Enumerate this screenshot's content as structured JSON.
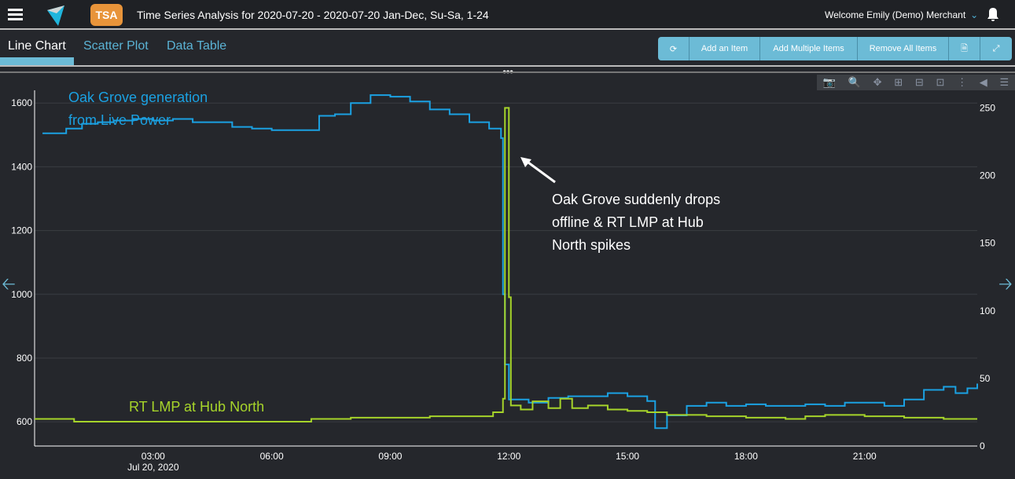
{
  "header": {
    "app_badge": "TSA",
    "title": "Time Series Analysis for 2020-07-20 - 2020-07-20 Jan-Dec, Su-Sa, 1-24",
    "welcome": "Welcome Emily (Demo) Merchant"
  },
  "tabs": [
    {
      "label": "Line Chart"
    },
    {
      "label": "Scatter Plot"
    },
    {
      "label": "Data Table"
    }
  ],
  "toolbar": {
    "add_item": "Add an Item",
    "add_multiple": "Add Multiple Items",
    "remove_all": "Remove All Items"
  },
  "colors": {
    "blue": "#1ba1e2",
    "green": "#a6d42a",
    "accent": "#6cbbd6",
    "badge": "#e8943a"
  },
  "chart_data": {
    "type": "line",
    "x_unit": "hour of Jul 20, 2020",
    "x_ticks": [
      "03:00",
      "06:00",
      "09:00",
      "12:00",
      "15:00",
      "18:00",
      "21:00"
    ],
    "x_tick_hours": [
      3,
      6,
      9,
      12,
      15,
      18,
      21
    ],
    "x_sublabel": "Jul 20, 2020",
    "xlim": [
      0,
      23.85
    ],
    "y_left": {
      "ticks": [
        600,
        800,
        1000,
        1200,
        1400,
        1600
      ],
      "range": [
        524,
        1640
      ]
    },
    "y_right": {
      "ticks": [
        0,
        50,
        100,
        150,
        200,
        250
      ],
      "range": [
        0,
        263
      ]
    },
    "series": [
      {
        "name": "Oak Grove generation from Live Power",
        "axis": "left",
        "color": "#1ba1e2",
        "x": [
          0.2,
          0.8,
          1.2,
          1.6,
          2,
          2.5,
          3,
          3.5,
          4,
          4.5,
          5,
          5.5,
          6,
          7,
          7.2,
          7.6,
          8,
          8.5,
          9,
          9.5,
          10,
          10.5,
          11,
          11.5,
          11.8,
          11.85,
          11.9,
          12,
          12.5,
          13,
          13.5,
          14,
          14.5,
          15,
          15.5,
          15.7,
          16,
          16.5,
          17,
          17.5,
          18,
          18.5,
          19,
          19.5,
          20,
          20.5,
          21,
          21.5,
          22,
          22.5,
          23,
          23.3,
          23.6,
          23.85
        ],
        "y": [
          1505,
          1520,
          1535,
          1540,
          1545,
          1550,
          1545,
          1550,
          1540,
          1540,
          1525,
          1520,
          1515,
          1515,
          1560,
          1565,
          1600,
          1625,
          1620,
          1605,
          1580,
          1565,
          1540,
          1520,
          1490,
          1000,
          780,
          670,
          660,
          675,
          680,
          680,
          690,
          680,
          665,
          580,
          620,
          650,
          660,
          650,
          655,
          650,
          650,
          655,
          650,
          660,
          660,
          650,
          670,
          700,
          710,
          690,
          705,
          720
        ]
      },
      {
        "name": "RT LMP at Hub North",
        "axis": "right",
        "color": "#a6d42a",
        "x": [
          0,
          1,
          2,
          3,
          4,
          5,
          6,
          7,
          8,
          9,
          10,
          11,
          11.6,
          11.85,
          11.9,
          12,
          12.05,
          12.3,
          12.6,
          13,
          13.3,
          13.6,
          14,
          14.5,
          15,
          15.5,
          16,
          17,
          18,
          19,
          19.5,
          20,
          21,
          22,
          23,
          23.85
        ],
        "y": [
          20,
          18,
          18,
          18,
          18,
          18,
          18,
          20,
          21,
          21,
          22,
          22,
          25,
          35,
          250,
          110,
          30,
          27,
          33,
          28,
          35,
          28,
          30,
          27,
          26,
          25,
          23,
          22,
          21,
          20,
          22,
          23,
          22,
          21,
          20,
          20
        ]
      }
    ],
    "labels": {
      "blue_series": [
        "Oak Grove generation",
        "from Live Power"
      ],
      "green_series": "RT LMP at Hub North"
    },
    "annotation": [
      "Oak Grove suddenly drops",
      "offline & RT LMP at Hub",
      "North spikes"
    ]
  }
}
